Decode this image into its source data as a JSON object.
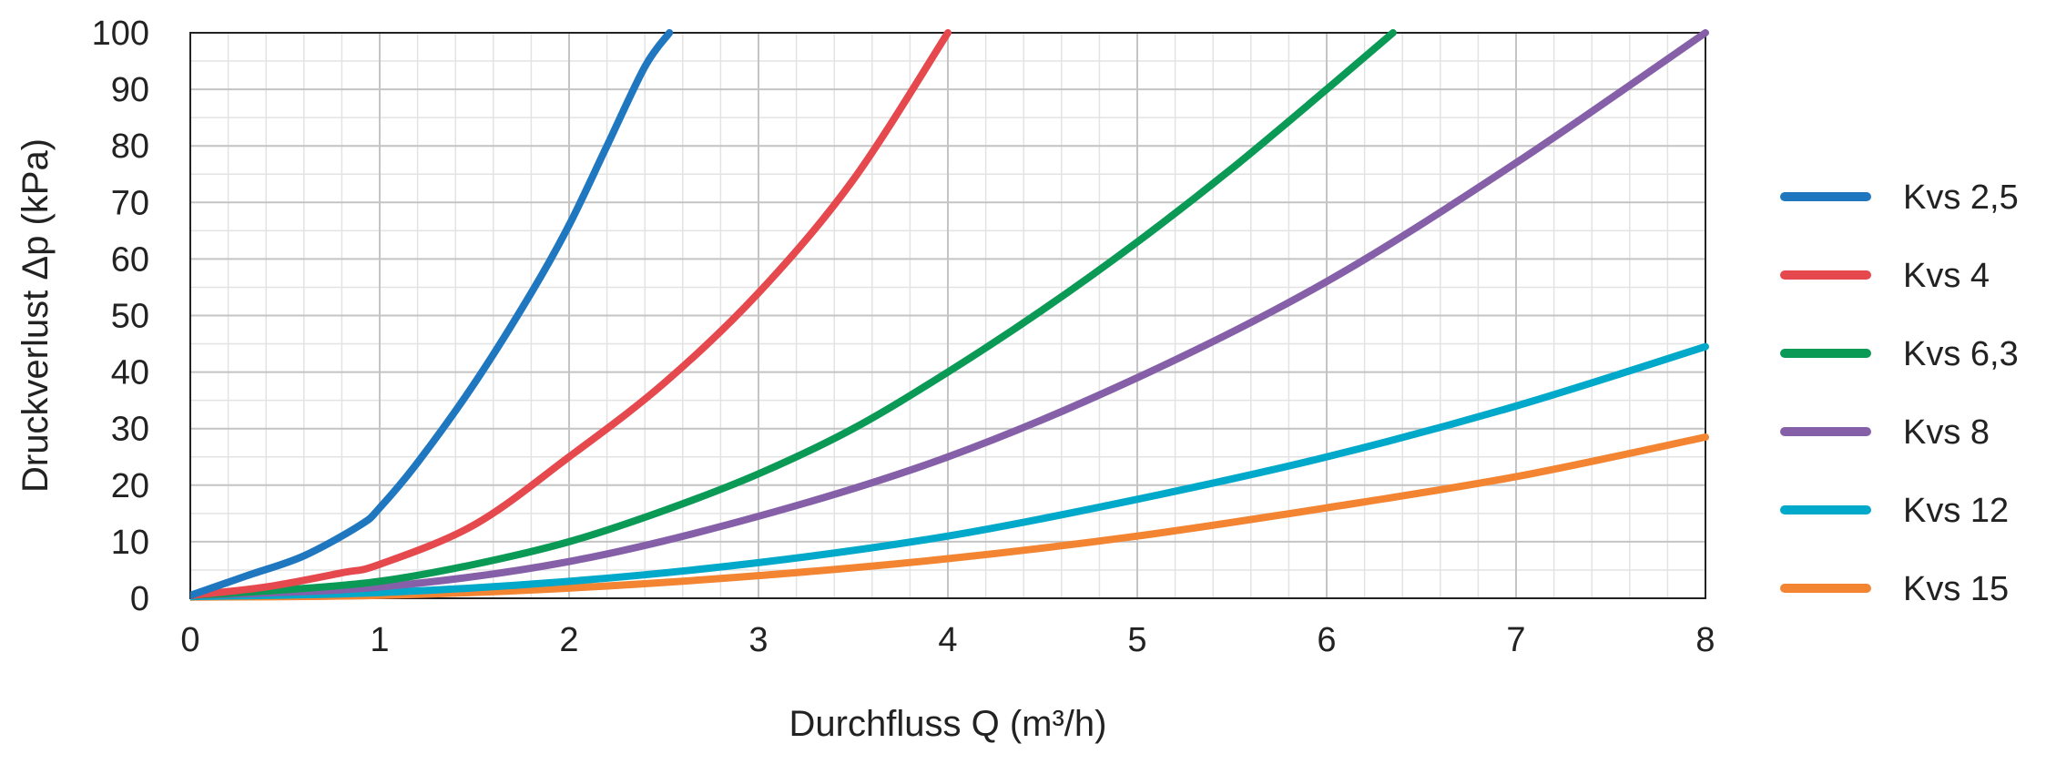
{
  "chart_data": {
    "type": "line",
    "xlabel": "Durchfluss Q (m³/h)",
    "ylabel": "Druckverlust Δp (kPa)",
    "xlim": [
      0,
      8
    ],
    "ylim": [
      0,
      100
    ],
    "x_ticks": [
      "0",
      "1",
      "2",
      "3",
      "4",
      "5",
      "6",
      "7",
      "8"
    ],
    "y_ticks": [
      "0",
      "10",
      "20",
      "30",
      "40",
      "50",
      "60",
      "70",
      "80",
      "90",
      "100"
    ],
    "grid": {
      "major": true,
      "minor": true
    },
    "legend_position": "right",
    "series": [
      {
        "name": "Kvs 2,5",
        "color": "#1f77c0",
        "kvs": 2.5,
        "points": [
          [
            0,
            0.5
          ],
          [
            0.3,
            4
          ],
          [
            0.6,
            7.5
          ],
          [
            0.9,
            13
          ],
          [
            1.0,
            16
          ],
          [
            1.2,
            24
          ],
          [
            1.5,
            38
          ],
          [
            1.8,
            54
          ],
          [
            2.0,
            66
          ],
          [
            2.2,
            80
          ],
          [
            2.4,
            94
          ],
          [
            2.53,
            100
          ]
        ]
      },
      {
        "name": "Kvs 4",
        "color": "#e5484d",
        "kvs": 4,
        "points": [
          [
            0,
            0.5
          ],
          [
            0.4,
            2
          ],
          [
            0.8,
            4.5
          ],
          [
            1.0,
            6
          ],
          [
            1.5,
            13
          ],
          [
            2.0,
            25
          ],
          [
            2.5,
            38
          ],
          [
            3.0,
            54
          ],
          [
            3.5,
            74
          ],
          [
            4.0,
            100
          ]
        ]
      },
      {
        "name": "Kvs 6,3",
        "color": "#0a9a55",
        "kvs": 6.3,
        "points": [
          [
            0,
            0.5
          ],
          [
            0.5,
            1.5
          ],
          [
            1.0,
            3
          ],
          [
            1.5,
            6
          ],
          [
            2.0,
            10
          ],
          [
            2.5,
            15.5
          ],
          [
            3.0,
            22
          ],
          [
            3.5,
            30
          ],
          [
            4.0,
            40
          ],
          [
            4.5,
            51
          ],
          [
            5.0,
            63
          ],
          [
            5.5,
            76
          ],
          [
            6.0,
            90
          ],
          [
            6.35,
            100
          ]
        ]
      },
      {
        "name": "Kvs 8",
        "color": "#8560a8",
        "kvs": 8,
        "points": [
          [
            0,
            0.5
          ],
          [
            1.0,
            2
          ],
          [
            2.0,
            6.5
          ],
          [
            3.0,
            14.5
          ],
          [
            4.0,
            25
          ],
          [
            5.0,
            39
          ],
          [
            6.0,
            56
          ],
          [
            7.0,
            77
          ],
          [
            8.0,
            100
          ]
        ]
      },
      {
        "name": "Kvs 12",
        "color": "#00a9c9",
        "kvs": 12,
        "points": [
          [
            0,
            0.3
          ],
          [
            1.0,
            1
          ],
          [
            2.0,
            3
          ],
          [
            3.0,
            6.3
          ],
          [
            4.0,
            11
          ],
          [
            5.0,
            17.5
          ],
          [
            6.0,
            25
          ],
          [
            7.0,
            34
          ],
          [
            8.0,
            44.5
          ]
        ]
      },
      {
        "name": "Kvs 15",
        "color": "#f28432",
        "kvs": 15,
        "points": [
          [
            0,
            0.2
          ],
          [
            1.0,
            0.5
          ],
          [
            2.0,
            1.8
          ],
          [
            3.0,
            4
          ],
          [
            4.0,
            7
          ],
          [
            5.0,
            11
          ],
          [
            6.0,
            16
          ],
          [
            7.0,
            21.5
          ],
          [
            8.0,
            28.5
          ]
        ]
      }
    ]
  }
}
